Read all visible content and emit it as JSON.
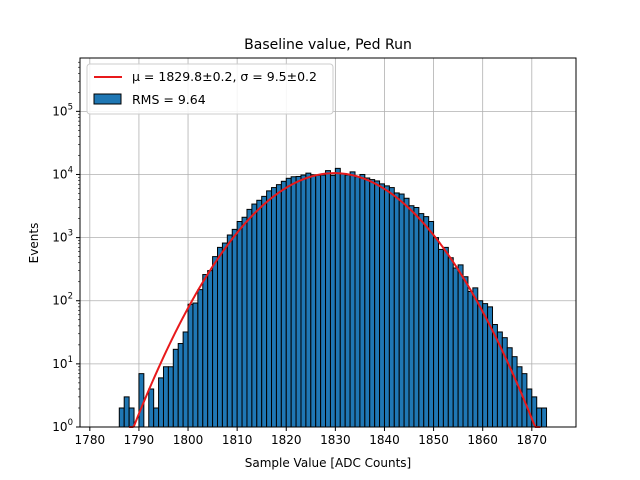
{
  "chart_data": {
    "type": "bar",
    "title": "Baseline value, Ped Run",
    "xlabel": "Sample Value [ADC Counts]",
    "ylabel": "Events",
    "xlim": [
      1778,
      1879
    ],
    "ylim": [
      1,
      700000
    ],
    "yscale": "log",
    "grid": true,
    "legend_position": "top-left",
    "x_ticks": [
      "1780",
      "1790",
      "1800",
      "1810",
      "1820",
      "1830",
      "1840",
      "1850",
      "1860",
      "1870"
    ],
    "y_ticks": [
      "10^0",
      "10^1",
      "10^2",
      "10^3",
      "10^4",
      "10^5"
    ],
    "histogram": {
      "bin_width": 1,
      "bin_starts": [
        1786,
        1787,
        1788,
        1789,
        1790,
        1791,
        1792,
        1793,
        1794,
        1795,
        1796,
        1797,
        1798,
        1799,
        1800,
        1801,
        1802,
        1803,
        1804,
        1805,
        1806,
        1807,
        1808,
        1809,
        1810,
        1811,
        1812,
        1813,
        1814,
        1815,
        1816,
        1817,
        1818,
        1819,
        1820,
        1821,
        1822,
        1823,
        1824,
        1825,
        1826,
        1827,
        1828,
        1829,
        1830,
        1831,
        1832,
        1833,
        1834,
        1835,
        1836,
        1837,
        1838,
        1839,
        1840,
        1841,
        1842,
        1843,
        1844,
        1845,
        1846,
        1847,
        1848,
        1849,
        1850,
        1851,
        1852,
        1853,
        1854,
        1855,
        1856,
        1857,
        1858,
        1859,
        1860,
        1861,
        1862,
        1863,
        1864,
        1865,
        1866,
        1867,
        1868,
        1869,
        1870,
        1871,
        1872
      ],
      "counts": [
        2,
        3,
        2,
        1,
        7,
        1,
        4,
        2,
        6,
        9,
        9,
        17,
        21,
        32,
        88,
        92,
        150,
        260,
        300,
        500,
        700,
        820,
        1100,
        1350,
        1800,
        2100,
        2800,
        3400,
        3900,
        4500,
        5500,
        6200,
        6900,
        7800,
        8700,
        9200,
        9300,
        9800,
        10500,
        9900,
        9700,
        9800,
        11500,
        9700,
        12500,
        10200,
        9800,
        11000,
        9200,
        10000,
        8800,
        8300,
        7900,
        7100,
        6600,
        6200,
        5100,
        4900,
        4200,
        3200,
        3000,
        2400,
        2150,
        1800,
        1000,
        650,
        700,
        480,
        330,
        370,
        240,
        140,
        160,
        100,
        90,
        80,
        42,
        32,
        26,
        18,
        13,
        9,
        7,
        4,
        3,
        2,
        2
      ]
    },
    "series": [
      {
        "name": "$\\mu = 1829.8\\pm0.2, \\sigma = 9.5\\pm0.2$",
        "display": "μ = 1829.8±0.2, σ = 9.5±0.2",
        "kind": "gaussian_fit",
        "mu": 1829.8,
        "sigma": 9.5,
        "amplitude": 10500,
        "color": "#e8191b"
      },
      {
        "name": "RMS = 9.64",
        "kind": "histogram",
        "color": "#1f77b4"
      }
    ]
  }
}
